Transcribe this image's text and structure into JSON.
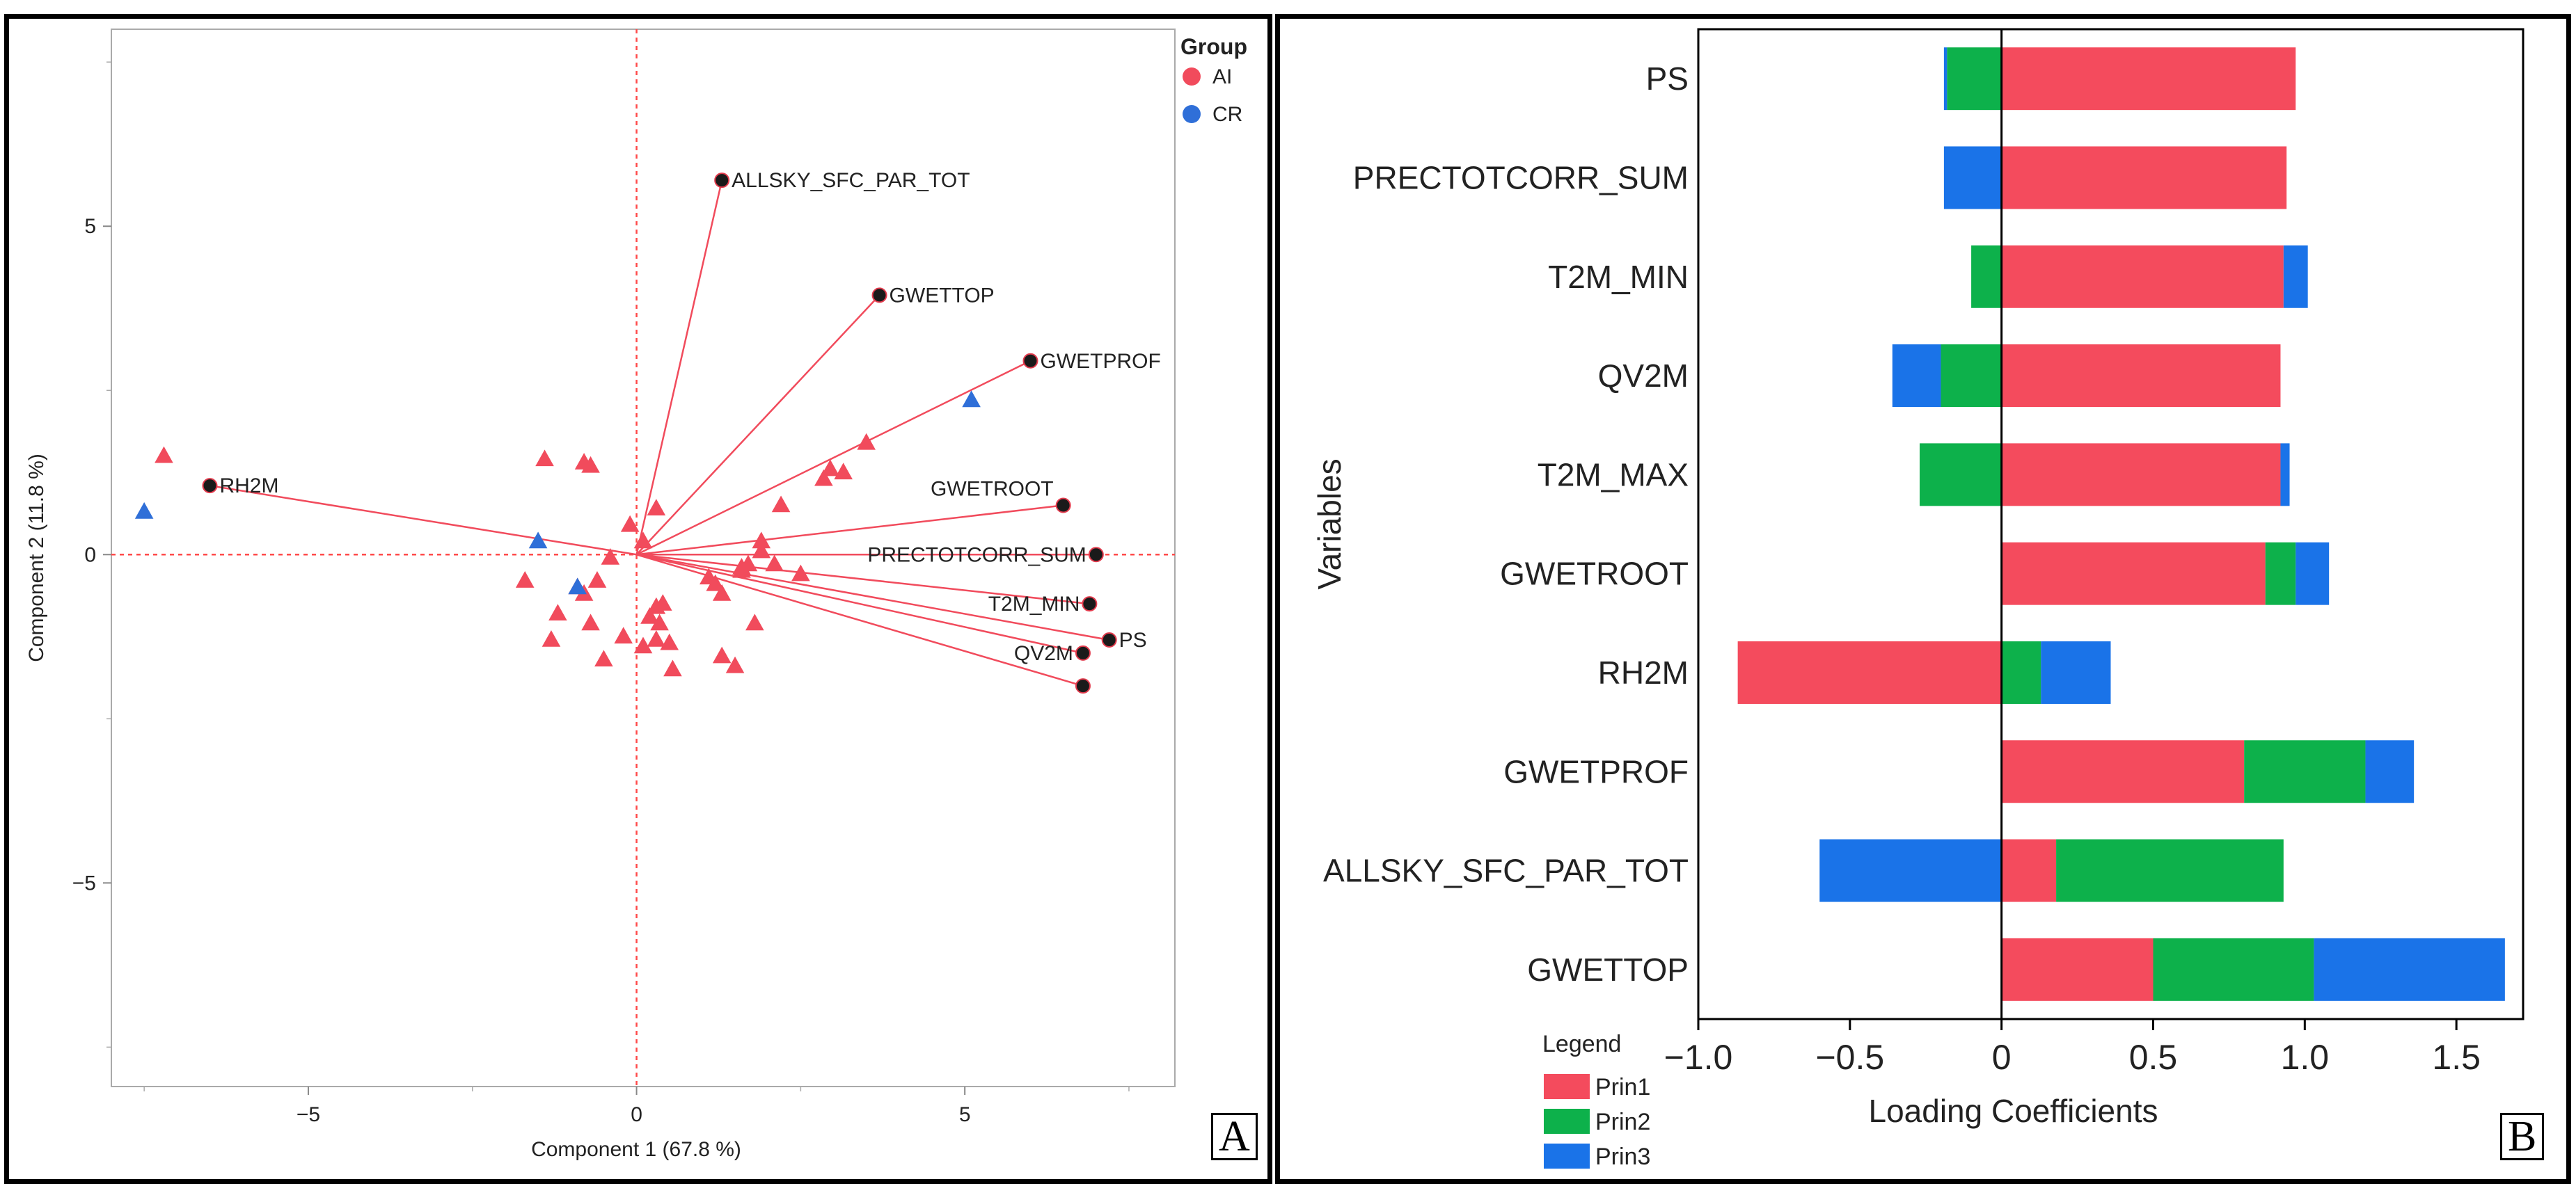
{
  "colors": {
    "ai": "#f14b5c",
    "cr": "#2f6fd8",
    "prin1": "#f44b5d",
    "prin2": "#0db14b",
    "prin3": "#1a73e8",
    "loading_line": "#f14b5c",
    "ref_line": "#ff4a4a"
  },
  "panel_labels": {
    "a": "A",
    "b": "B"
  },
  "chart_data": [
    {
      "type": "scatter",
      "subtype": "biplot",
      "xlabel": "Component 1  (67.8 %)",
      "ylabel": "Component 2  (11.8 %)",
      "xlim": [
        -8.0,
        8.2
      ],
      "ylim": [
        -8.1,
        8.0
      ],
      "x_ticks": [
        -5,
        0,
        5
      ],
      "y_ticks": [
        5,
        0,
        -5
      ],
      "x_tick_labels": [
        "−5",
        "0",
        "5"
      ],
      "y_tick_labels": [
        "5",
        "0",
        "−5"
      ],
      "legend": {
        "title": "Group",
        "position": "top-right",
        "entries": [
          "AI",
          "CR"
        ]
      },
      "loadings": [
        {
          "name": "ALLSKY_SFC_PAR_TOT",
          "x": 1.3,
          "y": 5.7
        },
        {
          "name": "GWETTOP",
          "x": 3.7,
          "y": 3.95
        },
        {
          "name": "GWETPROF",
          "x": 6.0,
          "y": 2.95
        },
        {
          "name": "GWETROOT",
          "x": 6.5,
          "y": 0.75
        },
        {
          "name": "PRECTOTCORR_SUM",
          "x": 7.0,
          "y": 0.0
        },
        {
          "name": "T2M_MIN",
          "x": 6.9,
          "y": -0.75
        },
        {
          "name": "PS",
          "x": 7.2,
          "y": -1.3
        },
        {
          "name": "QV2M",
          "x": 6.8,
          "y": -1.5
        },
        {
          "name": "",
          "x": 6.8,
          "y": -2.0
        },
        {
          "name": "RH2M",
          "x": -6.5,
          "y": 1.05
        }
      ],
      "series": [
        {
          "name": "AI",
          "points": [
            [
              -7.2,
              1.5
            ],
            [
              -1.4,
              1.45
            ],
            [
              -0.8,
              1.4
            ],
            [
              -0.7,
              1.35
            ],
            [
              0.3,
              0.7
            ],
            [
              -0.1,
              0.45
            ],
            [
              0.1,
              0.2
            ],
            [
              -0.4,
              -0.05
            ],
            [
              -0.6,
              -0.4
            ],
            [
              -1.7,
              -0.4
            ],
            [
              -0.9,
              -0.5
            ],
            [
              -0.8,
              -0.6
            ],
            [
              -1.2,
              -0.9
            ],
            [
              -0.7,
              -1.05
            ],
            [
              -1.3,
              -1.3
            ],
            [
              -0.2,
              -1.25
            ],
            [
              0.1,
              -1.4
            ],
            [
              -0.5,
              -1.6
            ],
            [
              0.3,
              -1.3
            ],
            [
              0.2,
              -0.95
            ],
            [
              0.3,
              -0.8
            ],
            [
              0.35,
              -1.05
            ],
            [
              0.4,
              -0.75
            ],
            [
              0.5,
              -1.35
            ],
            [
              1.3,
              -1.55
            ],
            [
              1.5,
              -1.7
            ],
            [
              0.55,
              -1.75
            ],
            [
              1.2,
              -0.45
            ],
            [
              1.3,
              -0.6
            ],
            [
              1.6,
              -0.25
            ],
            [
              1.7,
              -0.15
            ],
            [
              1.9,
              0.2
            ],
            [
              2.1,
              -0.15
            ],
            [
              2.5,
              -0.3
            ],
            [
              1.8,
              -1.05
            ],
            [
              2.2,
              0.75
            ],
            [
              2.85,
              1.15
            ],
            [
              2.95,
              1.3
            ],
            [
              3.15,
              1.25
            ],
            [
              3.5,
              1.7
            ],
            [
              1.9,
              0.05
            ],
            [
              1.6,
              -0.2
            ],
            [
              1.1,
              -0.35
            ]
          ]
        },
        {
          "name": "CR",
          "points": [
            [
              -7.5,
              0.65
            ],
            [
              -1.5,
              0.2
            ],
            [
              -0.9,
              -0.5
            ],
            [
              5.1,
              2.35
            ]
          ]
        }
      ]
    },
    {
      "type": "bar",
      "orientation": "horizontal",
      "stacked": true,
      "xlabel": "Loading Coefficients",
      "ylabel": "Variables",
      "xlim": [
        -1.0,
        1.72
      ],
      "x_ticks": [
        -1.0,
        -0.5,
        0.0,
        0.5,
        1.0,
        1.5
      ],
      "x_tick_labels": [
        "−1.0",
        "−0.5",
        "0",
        "0.5",
        "1.0",
        "1.5"
      ],
      "categories": [
        "PS",
        "PRECTOTCORR_SUM",
        "T2M_MIN",
        "QV2M",
        "T2M_MAX",
        "GWETROOT",
        "RH2M",
        "GWETPROF",
        "ALLSKY_SFC_PAR_TOT",
        "GWETTOP"
      ],
      "series": [
        {
          "name": "Prin1",
          "values": [
            0.97,
            0.94,
            0.93,
            0.92,
            0.92,
            0.87,
            -0.87,
            0.8,
            0.18,
            0.5
          ]
        },
        {
          "name": "Prin2",
          "values": [
            -0.18,
            0.0,
            -0.1,
            -0.2,
            -0.27,
            0.1,
            0.13,
            0.4,
            0.75,
            0.53
          ]
        },
        {
          "name": "Prin3",
          "values": [
            -0.01,
            -0.19,
            0.08,
            -0.16,
            0.03,
            0.11,
            0.23,
            0.16,
            -0.6,
            0.63
          ]
        }
      ],
      "legend": {
        "title": "Legend",
        "position": "bottom-left",
        "entries": [
          "Prin1",
          "Prin2",
          "Prin3"
        ]
      }
    }
  ]
}
